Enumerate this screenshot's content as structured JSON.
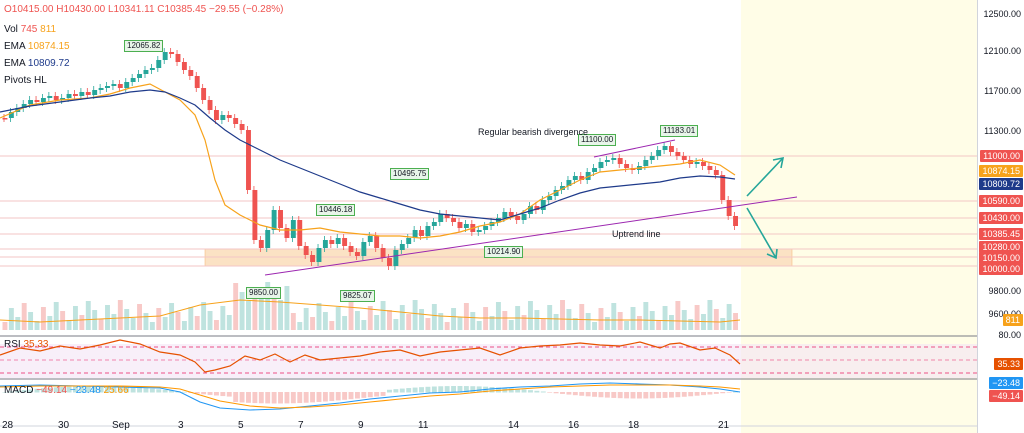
{
  "legend": {
    "ohlc": "O10415.00  H10430.00  L10341.11  C10385.45  −29.55 (−0.28%)",
    "vol_label": "Vol",
    "vol_value1": "745",
    "vol_value2": "811",
    "ema1_label": "EMA",
    "ema1_value": "10874.15",
    "ema2_label": "EMA",
    "ema2_value": "10809.72",
    "pivots_label": "Pivots HL"
  },
  "price_axis_labels": [
    "12500.00",
    "12100.00",
    "11700.00",
    "11300.00",
    "9800.00",
    "9600.00"
  ],
  "price_tags": [
    {
      "text": "11000.00",
      "color": "#ef5350"
    },
    {
      "text": "10874.15",
      "color": "#f7a21b"
    },
    {
      "text": "10809.72",
      "color": "#1e3a8a"
    },
    {
      "text": "10590.00",
      "color": "#ef5350"
    },
    {
      "text": "10430.00",
      "color": "#ef5350"
    },
    {
      "text": "10385.45",
      "color": "#ef5350"
    },
    {
      "text": "10280.00",
      "color": "#ef5350"
    },
    {
      "text": "10150.00",
      "color": "#ef5350"
    },
    {
      "text": "10000.00",
      "color": "#ef5350"
    },
    {
      "text": "811",
      "color": "#f7a21b"
    }
  ],
  "x_labels": [
    "28",
    "30",
    "Sep",
    "3",
    "5",
    "7",
    "9",
    "11",
    "14",
    "16",
    "18",
    "21"
  ],
  "pivot_labels": [
    "12065.82",
    "11183.01",
    "11100.00",
    "10495.75",
    "10446.18",
    "10214.90",
    "9850.00",
    "9825.07"
  ],
  "annotations": {
    "divergence": "Regular bearish divergence",
    "uptrend": "Uptrend line"
  },
  "rsi": {
    "label": "RSI",
    "value": "35.33",
    "axis": "80.00",
    "tag": "35.33"
  },
  "macd": {
    "label": "MACD",
    "v1": "−49.14",
    "v2": "−23.48",
    "v3": "25.66",
    "tag1": "−23.48",
    "tag2": "−49.14"
  },
  "colors": {
    "up": "#26a69a",
    "down": "#ef5350",
    "ema_fast": "#f7a21b",
    "ema_slow": "#1e3a8a",
    "trend": "#9c27b0",
    "arrow": "#26a69a",
    "zone": "#fbe2c4",
    "highlight": "#fffde7"
  }
}
